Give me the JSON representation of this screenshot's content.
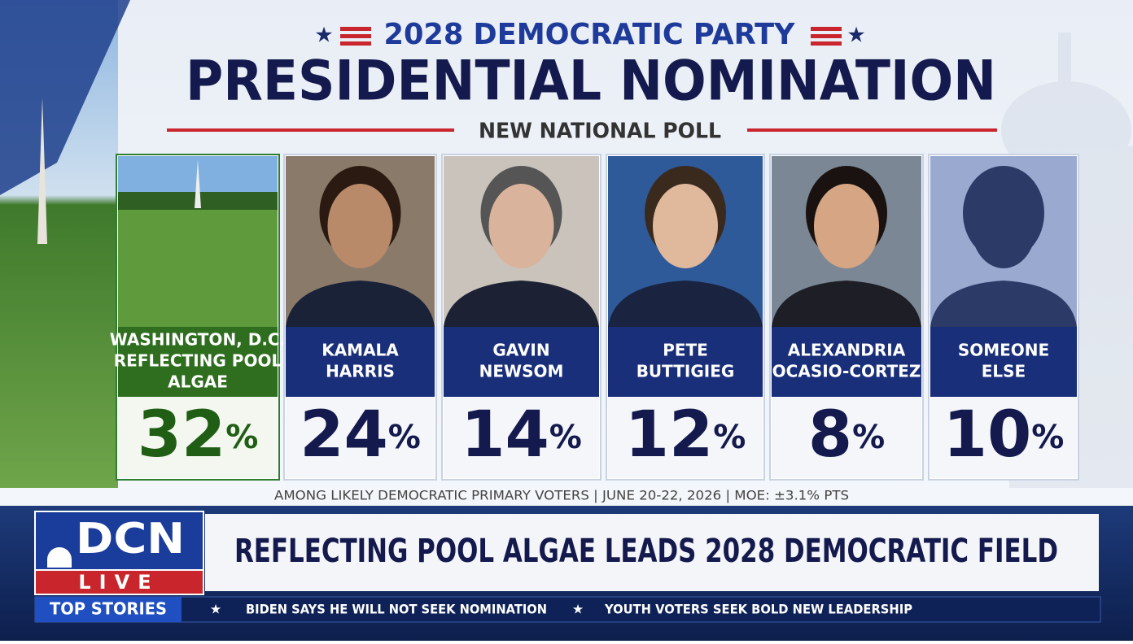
{
  "header": {
    "kicker": "2028 DEMOCRATIC PARTY",
    "title": "PRESIDENTIAL NOMINATION",
    "subtitle": "NEW NATIONAL POLL"
  },
  "candidates": [
    {
      "name_lines": [
        "WASHINGTON, D.C.",
        "REFLECTING POOL",
        "ALGAE"
      ],
      "value": 32,
      "unit": "%"
    },
    {
      "name_lines": [
        "KAMALA",
        "HARRIS"
      ],
      "value": 24,
      "unit": "%"
    },
    {
      "name_lines": [
        "GAVIN",
        "NEWSOM"
      ],
      "value": 14,
      "unit": "%"
    },
    {
      "name_lines": [
        "PETE",
        "BUTTIGIEG"
      ],
      "value": 12,
      "unit": "%"
    },
    {
      "name_lines": [
        "ALEXANDRIA",
        "OCASIO-CORTEZ"
      ],
      "value": 8,
      "unit": "%"
    },
    {
      "name_lines": [
        "SOMEONE",
        "ELSE"
      ],
      "value": 10,
      "unit": "%"
    }
  ],
  "footnote": "AMONG LIKELY DEMOCRATIC PRIMARY VOTERS  |  JUNE 20-22, 2026  |  MOE: ±3.1% PTS",
  "logo": {
    "brand": "DCN",
    "live": "LIVE"
  },
  "headline": "REFLECTING POOL ALGAE LEADS 2028 DEMOCRATIC FIELD",
  "ticker": {
    "label": "TOP STORIES",
    "items": [
      "BIDEN SAYS HE WILL NOT SEEK NOMINATION",
      "YOUTH VOTERS SEEK BOLD NEW LEADERSHIP"
    ]
  }
}
